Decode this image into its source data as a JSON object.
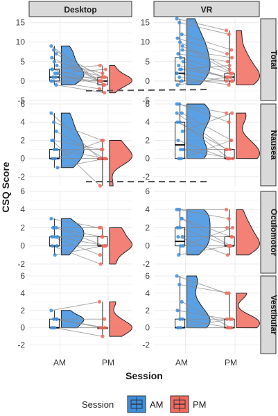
{
  "chart_data": {
    "type": "raincloud",
    "ylabel": "CSQ Score",
    "xlabel": "Session",
    "columns": [
      "Desktop",
      "VR"
    ],
    "rows": [
      "Total",
      "Nausea",
      "Oculomotor",
      "Vestibular"
    ],
    "x_categories": [
      "AM",
      "PM"
    ],
    "legend": {
      "title": "Session",
      "items": [
        "AM",
        "PM"
      ],
      "position": "bottom"
    },
    "colors": {
      "AM": "#3d8fe0",
      "PM": "#f26b5e",
      "panel_bg": "#ffffff",
      "grid": "#ebebeb",
      "strip_bg": "#d9d9d9"
    },
    "grid": true,
    "annotations": [
      "dashed connector Total to Desktop/VR",
      "dashed connector Nausea to Desktop/VR"
    ],
    "panels": [
      {
        "row": "Total",
        "col": "Desktop",
        "ylim": [
          -5,
          16
        ],
        "yticks": [
          -5,
          0,
          5,
          10,
          15
        ],
        "am": {
          "min": -1,
          "q1": 0,
          "median": 1,
          "q3": 3,
          "max": 9
        },
        "pm": {
          "min": -3,
          "q1": -1,
          "median": 0,
          "q3": 1,
          "max": 4
        },
        "pairs": [
          [
            9,
            0
          ],
          [
            8,
            1
          ],
          [
            7,
            -1
          ],
          [
            6,
            0
          ],
          [
            5,
            2
          ],
          [
            4,
            1
          ],
          [
            3,
            0
          ],
          [
            2,
            -1
          ],
          [
            2,
            3
          ],
          [
            1,
            0
          ],
          [
            1,
            1
          ],
          [
            0,
            -2
          ],
          [
            0,
            0
          ],
          [
            -1,
            -3
          ],
          [
            3,
            4
          ]
        ]
      },
      {
        "row": "Total",
        "col": "VR",
        "ylim": [
          -5,
          16
        ],
        "yticks": [
          -5,
          0,
          5,
          10,
          15
        ],
        "am": {
          "min": -1,
          "q1": 0,
          "median": 2,
          "q3": 6,
          "max": 16
        },
        "pm": {
          "min": -1,
          "q1": 0,
          "median": 1,
          "q3": 2,
          "max": 13
        },
        "pairs": [
          [
            16,
            13
          ],
          [
            15,
            12
          ],
          [
            12,
            8
          ],
          [
            11,
            7
          ],
          [
            10,
            3
          ],
          [
            8,
            6
          ],
          [
            7,
            5
          ],
          [
            6,
            2
          ],
          [
            5,
            0
          ],
          [
            4,
            1
          ],
          [
            3,
            1
          ],
          [
            2,
            0
          ],
          [
            1,
            -1
          ],
          [
            0,
            0
          ],
          [
            -1,
            1
          ],
          [
            3,
            4
          ],
          [
            9,
            2
          ]
        ]
      },
      {
        "row": "Nausea",
        "col": "Desktop",
        "ylim": [
          -3,
          6
        ],
        "yticks": [
          -2,
          0,
          2,
          4,
          6
        ],
        "am": {
          "min": -1,
          "q1": 0,
          "median": 0,
          "q3": 1,
          "max": 5
        },
        "pm": {
          "min": -3,
          "q1": 0,
          "median": 0,
          "q3": 0,
          "max": 2
        },
        "pairs": [
          [
            5,
            0
          ],
          [
            4,
            2
          ],
          [
            3,
            0
          ],
          [
            2,
            -3
          ],
          [
            1,
            1
          ],
          [
            1,
            0
          ],
          [
            0,
            0
          ],
          [
            0,
            2
          ],
          [
            -1,
            0
          ],
          [
            2,
            1
          ]
        ]
      },
      {
        "row": "Nausea",
        "col": "VR",
        "ylim": [
          -3,
          6
        ],
        "yticks": [
          -2,
          0,
          2,
          4,
          6
        ],
        "am": {
          "min": 0,
          "q1": 0,
          "median": 1.5,
          "q3": 4,
          "max": 6
        },
        "pm": {
          "min": 0,
          "q1": 0,
          "median": 0,
          "q3": 1,
          "max": 5
        },
        "pairs": [
          [
            6,
            5
          ],
          [
            6,
            4
          ],
          [
            5,
            2
          ],
          [
            4,
            1
          ],
          [
            4,
            0
          ],
          [
            3,
            5
          ],
          [
            2,
            0
          ],
          [
            1,
            1
          ],
          [
            1,
            0
          ],
          [
            0,
            0
          ],
          [
            0,
            2
          ],
          [
            5,
            1
          ]
        ]
      },
      {
        "row": "Oculomotor",
        "col": "Desktop",
        "ylim": [
          -3,
          6
        ],
        "yticks": [
          -2,
          0,
          2,
          4,
          6
        ],
        "am": {
          "min": -1,
          "q1": 0,
          "median": 0,
          "q3": 1,
          "max": 3
        },
        "pm": {
          "min": -2,
          "q1": 0,
          "median": 0,
          "q3": 1,
          "max": 2
        },
        "pairs": [
          [
            3,
            2
          ],
          [
            2,
            1
          ],
          [
            2,
            0
          ],
          [
            1,
            -1
          ],
          [
            1,
            1
          ],
          [
            0,
            0
          ],
          [
            0,
            -2
          ],
          [
            -1,
            0
          ],
          [
            1,
            0
          ],
          [
            2,
            2
          ]
        ]
      },
      {
        "row": "Oculomotor",
        "col": "VR",
        "ylim": [
          -3,
          6
        ],
        "yticks": [
          -2,
          0,
          2,
          4,
          6
        ],
        "am": {
          "min": -1,
          "q1": 0,
          "median": 0.5,
          "q3": 2,
          "max": 4
        },
        "pm": {
          "min": -1,
          "q1": 0,
          "median": 0,
          "q3": 1,
          "max": 4
        },
        "pairs": [
          [
            4,
            4
          ],
          [
            4,
            3
          ],
          [
            3,
            1
          ],
          [
            2,
            2
          ],
          [
            2,
            0
          ],
          [
            1,
            1
          ],
          [
            1,
            -1
          ],
          [
            0,
            0
          ],
          [
            0,
            2
          ],
          [
            -1,
            0
          ],
          [
            3,
            0
          ]
        ]
      },
      {
        "row": "Vestibular",
        "col": "Desktop",
        "ylim": [
          -3,
          6
        ],
        "yticks": [
          -2,
          0,
          2,
          4,
          6
        ],
        "am": {
          "min": 0,
          "q1": 0,
          "median": 0,
          "q3": 1,
          "max": 2
        },
        "pm": {
          "min": -1,
          "q1": 0,
          "median": 0,
          "q3": 0,
          "max": 3
        },
        "pairs": [
          [
            2,
            3
          ],
          [
            1,
            0
          ],
          [
            1,
            1
          ],
          [
            0,
            0
          ],
          [
            0,
            -1
          ],
          [
            1,
            0
          ]
        ]
      },
      {
        "row": "Vestibular",
        "col": "VR",
        "ylim": [
          -3,
          6
        ],
        "yticks": [
          -2,
          0,
          2,
          4,
          6
        ],
        "am": {
          "min": 0,
          "q1": 0,
          "median": 0,
          "q3": 1,
          "max": 6
        },
        "pm": {
          "min": 0,
          "q1": 0,
          "median": 0,
          "q3": 1,
          "max": 4
        },
        "pairs": [
          [
            6,
            4
          ],
          [
            5,
            4
          ],
          [
            3,
            0
          ],
          [
            2,
            1
          ],
          [
            1,
            0
          ],
          [
            1,
            1
          ],
          [
            0,
            0
          ],
          [
            0,
            1
          ]
        ]
      }
    ]
  }
}
